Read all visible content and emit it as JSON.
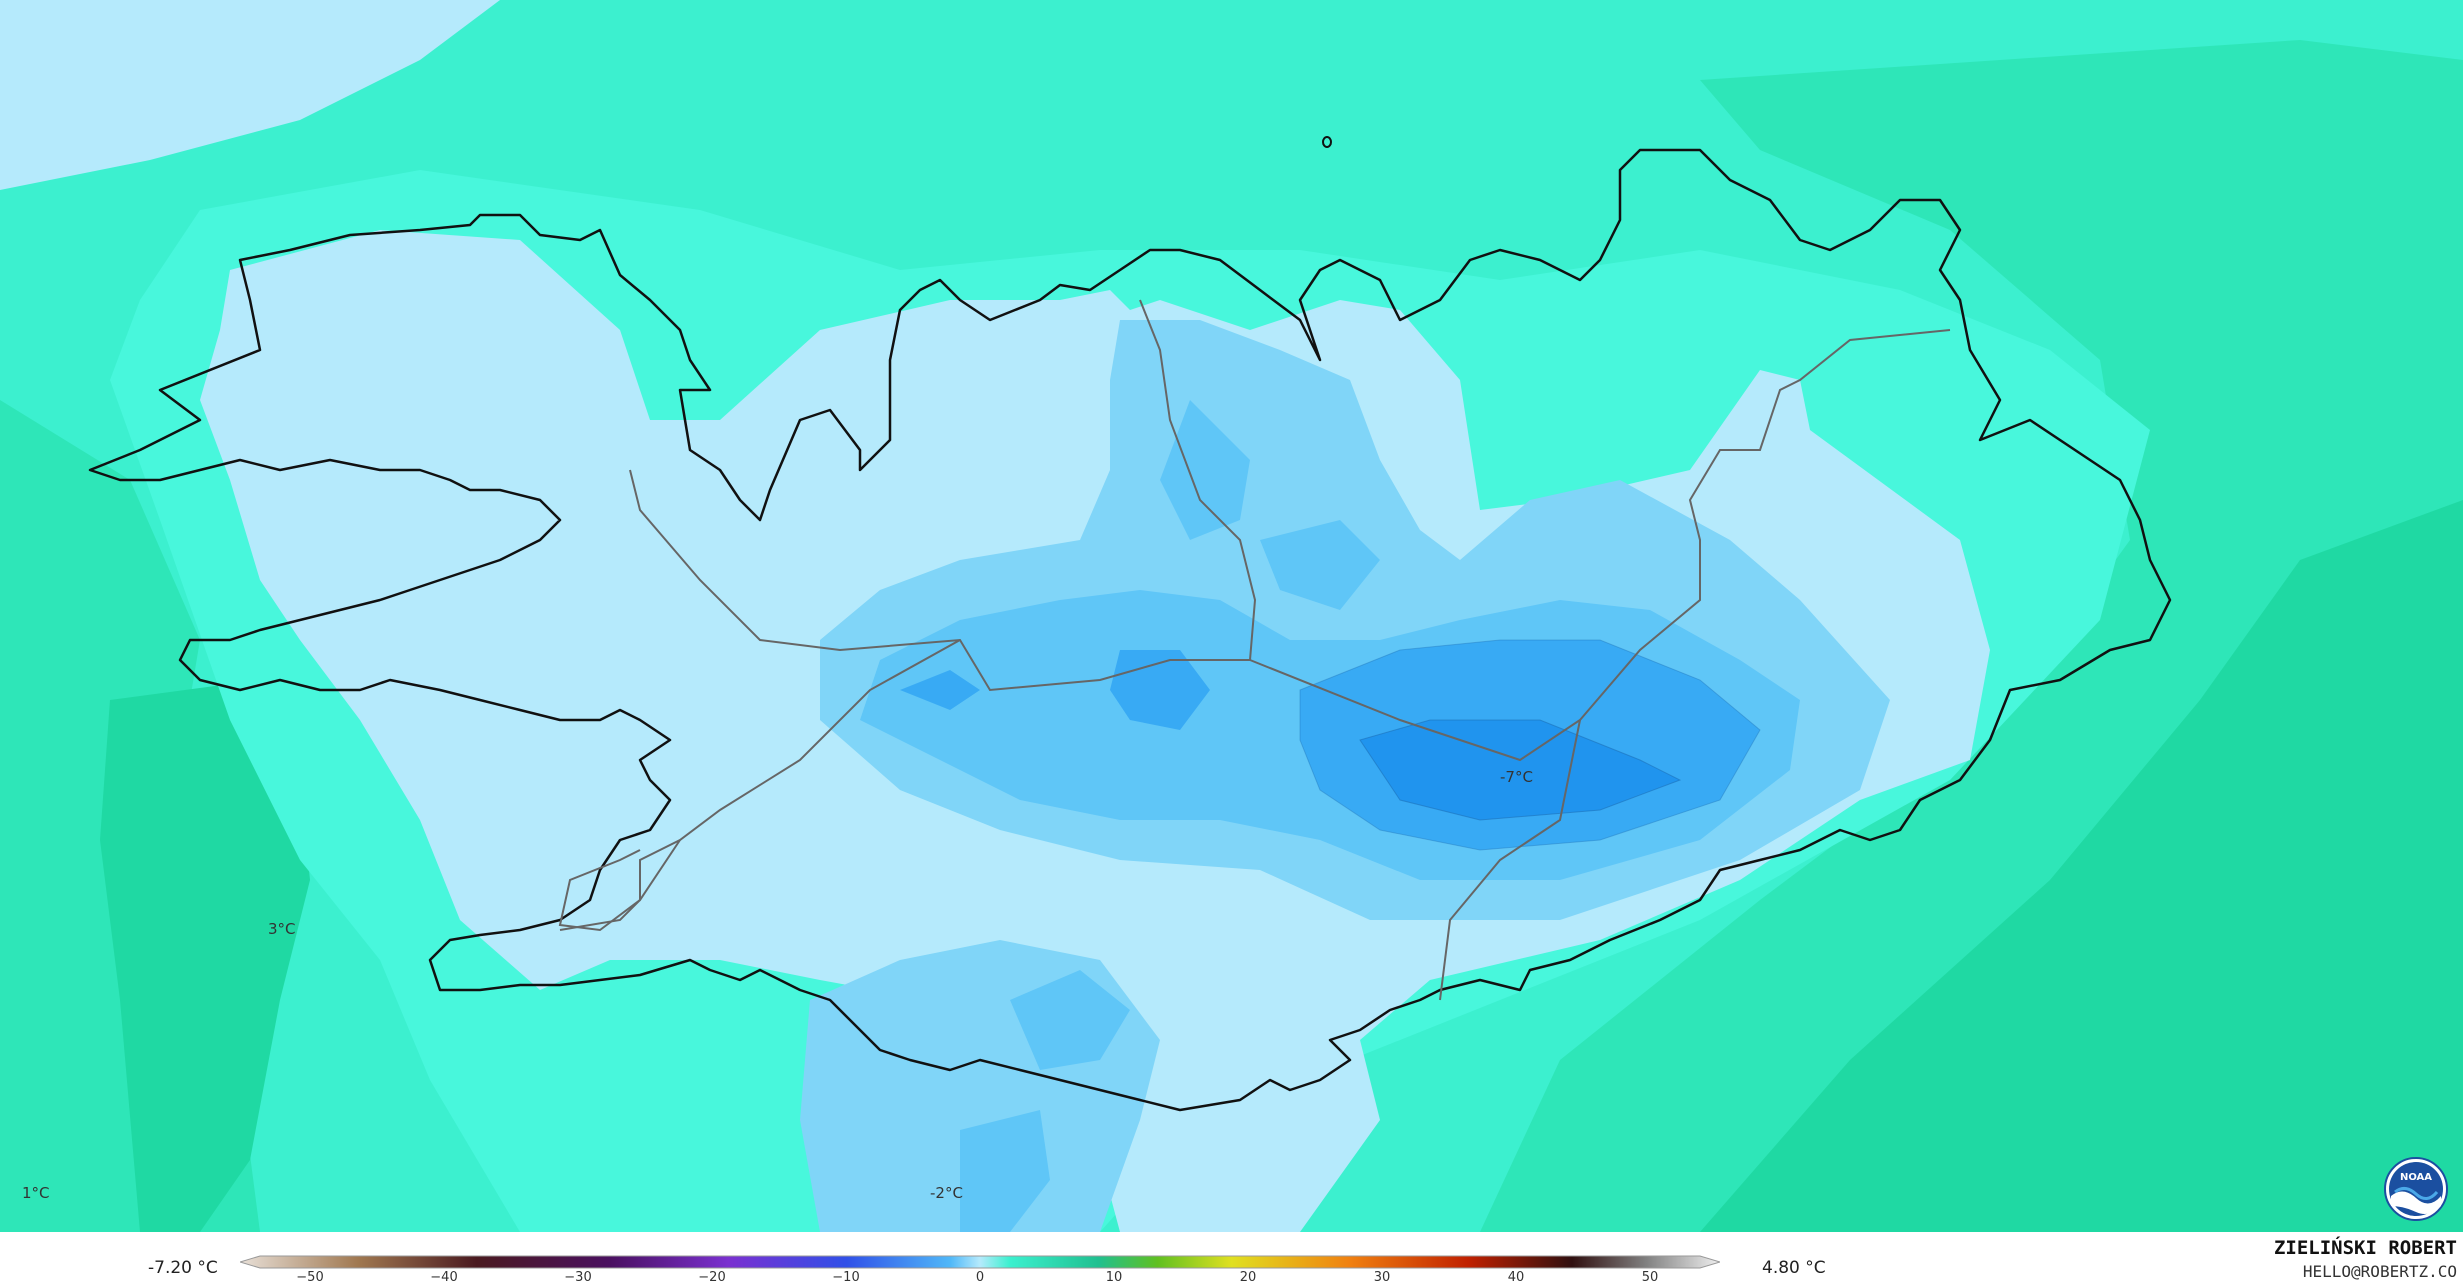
{
  "map": {
    "colors": {
      "ocean_warm": "#1fd9a3",
      "ocean_mid": "#2ee6b8",
      "ocean": "#3cf0cf",
      "coast_band": "#48f7dc",
      "near_zero": "#b5eafc",
      "cold1": "#80d5f8",
      "cold2": "#5fc6f7",
      "cold3": "#38aaf4",
      "cold4": "#2094ee"
    },
    "labels": {
      "center_temp": "-7°C",
      "west_temp": "3°C",
      "southwest_temp": "1°C",
      "south_temp": "-2°C"
    }
  },
  "legend": {
    "min_label": "-7.20 °C",
    "max_label": "4.80 °C",
    "ticks": [
      "−50",
      "−40",
      "−30",
      "−20",
      "−10",
      "0",
      "10",
      "20",
      "30",
      "40",
      "50"
    ],
    "tick_values": [
      -50,
      -40,
      -30,
      -20,
      -10,
      0,
      10,
      20,
      30,
      40,
      50
    ]
  },
  "credit": {
    "name": "ZIELIŃSKI ROBERT",
    "email": "HELLO@ROBERTZ.CO"
  },
  "logo": {
    "text": "NOAA"
  }
}
